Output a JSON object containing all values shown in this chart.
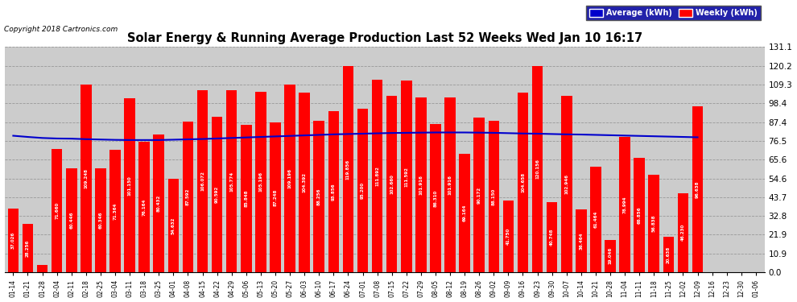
{
  "title": "Solar Energy & Running Average Production Last 52 Weeks Wed Jan 10 16:17",
  "copyright": "Copyright 2018 Cartronics.com",
  "legend_avg": "Average (kWh)",
  "legend_weekly": "Weekly (kWh)",
  "xlabels": [
    "01-14",
    "01-21",
    "01-28",
    "02-04",
    "02-11",
    "02-18",
    "02-25",
    "03-04",
    "03-11",
    "03-18",
    "03-25",
    "04-01",
    "04-08",
    "04-15",
    "04-22",
    "04-29",
    "05-06",
    "05-13",
    "05-20",
    "05-27",
    "06-03",
    "06-10",
    "06-17",
    "06-24",
    "07-01",
    "07-08",
    "07-15",
    "07-22",
    "07-29",
    "08-05",
    "08-12",
    "08-19",
    "08-26",
    "09-02",
    "09-09",
    "09-16",
    "09-23",
    "09-30",
    "10-07",
    "10-14",
    "10-21",
    "10-28",
    "11-04",
    "11-11",
    "11-18",
    "11-25",
    "12-02",
    "12-09",
    "12-16",
    "12-23",
    "12-30",
    "01-06"
  ],
  "weekly_values": [
    37.026,
    28.256,
    4.312,
    71.66,
    60.446,
    109.248,
    60.346,
    71.364,
    101.15,
    76.164,
    80.432,
    54.632,
    87.592,
    106.072,
    90.592,
    105.774,
    85.848,
    105.196,
    87.248,
    109.196,
    104.392,
    88.256,
    93.856,
    119.856,
    95.2,
    111.892,
    102.66,
    111.592,
    101.916,
    86.31,
    101.916,
    69.164,
    90.172,
    88.15,
    41.75,
    104.658,
    120.156,
    40.748,
    102.946,
    36.464,
    61.464,
    19.046,
    78.994,
    66.856,
    56.838,
    20.638,
    46.23,
    96.638,
    0,
    0,
    0,
    0
  ],
  "weekly_values_real": [
    37.026,
    28.256,
    4.312,
    71.66,
    60.446,
    109.248,
    60.346,
    71.364,
    101.15,
    76.164,
    80.432,
    54.632,
    87.592,
    106.072,
    90.592,
    105.774,
    85.848,
    105.196,
    87.248,
    109.196,
    104.392,
    88.256,
    93.856,
    119.856,
    95.2,
    111.892,
    102.66,
    111.592,
    101.916,
    86.31,
    101.916,
    69.164,
    90.172,
    88.15,
    41.75,
    104.658,
    120.156,
    40.748,
    102.946,
    36.464,
    61.464,
    19.046,
    78.994,
    66.856,
    56.838,
    20.638,
    46.23,
    96.638
  ],
  "avg_values": [
    79.5,
    78.8,
    78.2,
    77.9,
    77.8,
    77.5,
    77.3,
    77.1,
    77.0,
    77.0,
    77.0,
    77.2,
    77.4,
    77.6,
    77.9,
    78.2,
    78.5,
    78.8,
    79.1,
    79.4,
    79.7,
    80.0,
    80.3,
    80.5,
    80.7,
    80.9,
    81.1,
    81.2,
    81.3,
    81.4,
    81.4,
    81.4,
    81.3,
    81.2,
    81.0,
    80.8,
    80.7,
    80.5,
    80.3,
    80.2,
    80.0,
    79.8,
    79.6,
    79.4,
    79.2,
    79.0,
    78.8,
    78.6
  ],
  "bar_color": "#ff0000",
  "line_color": "#0000cc",
  "plot_bg_color": "#cccccc",
  "fig_bg_color": "#ffffff",
  "grid_color": "#999999",
  "yticks": [
    0.0,
    10.9,
    21.9,
    32.8,
    43.7,
    54.6,
    65.6,
    76.5,
    87.4,
    98.4,
    109.3,
    120.2,
    131.1
  ],
  "ylim": [
    0,
    131.1
  ],
  "bar_width": 0.75
}
